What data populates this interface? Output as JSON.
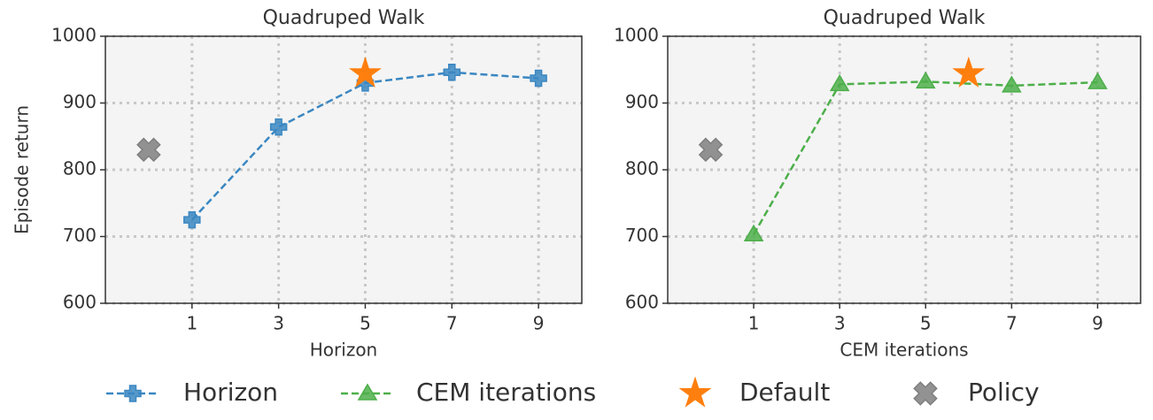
{
  "chart_data": [
    {
      "type": "line",
      "title": "Quadruped Walk",
      "xlabel": "Horizon",
      "ylabel": "Episode return",
      "xlim": [
        -1,
        10
      ],
      "xticks": [
        1,
        3,
        5,
        7,
        9
      ],
      "ylim": [
        600,
        1000
      ],
      "yticks": [
        600,
        700,
        800,
        900,
        1000
      ],
      "grid": true,
      "series": [
        {
          "name": "Horizon",
          "color": "#3a87c2",
          "marker": "plus",
          "linestyle": "dashed",
          "x": [
            1,
            3,
            5,
            7,
            9
          ],
          "values": [
            725,
            864,
            930,
            946,
            937
          ]
        },
        {
          "name": "Default",
          "color": "#ff7f0e",
          "marker": "star",
          "linestyle": "none",
          "x": [
            5
          ],
          "values": [
            944
          ]
        },
        {
          "name": "Policy",
          "color": "#7f7f7f",
          "marker": "x",
          "linestyle": "none",
          "x": [
            0
          ],
          "values": [
            830
          ]
        }
      ]
    },
    {
      "type": "line",
      "title": "Quadruped Walk",
      "xlabel": "CEM iterations",
      "xlim": [
        -1,
        10
      ],
      "xticks": [
        1,
        3,
        5,
        7,
        9
      ],
      "ylim": [
        600,
        1000
      ],
      "yticks": [
        600,
        700,
        800,
        900,
        1000
      ],
      "grid": true,
      "series": [
        {
          "name": "CEM iterations",
          "color": "#4daf4a",
          "marker": "triangle",
          "linestyle": "dashed",
          "x": [
            1,
            3,
            5,
            7,
            9
          ],
          "values": [
            703,
            928,
            932,
            926,
            931
          ]
        },
        {
          "name": "Default",
          "color": "#ff7f0e",
          "marker": "star",
          "linestyle": "none",
          "x": [
            6
          ],
          "values": [
            944
          ]
        },
        {
          "name": "Policy",
          "color": "#7f7f7f",
          "marker": "x",
          "linestyle": "none",
          "x": [
            0
          ],
          "values": [
            830
          ]
        }
      ]
    }
  ]
}
